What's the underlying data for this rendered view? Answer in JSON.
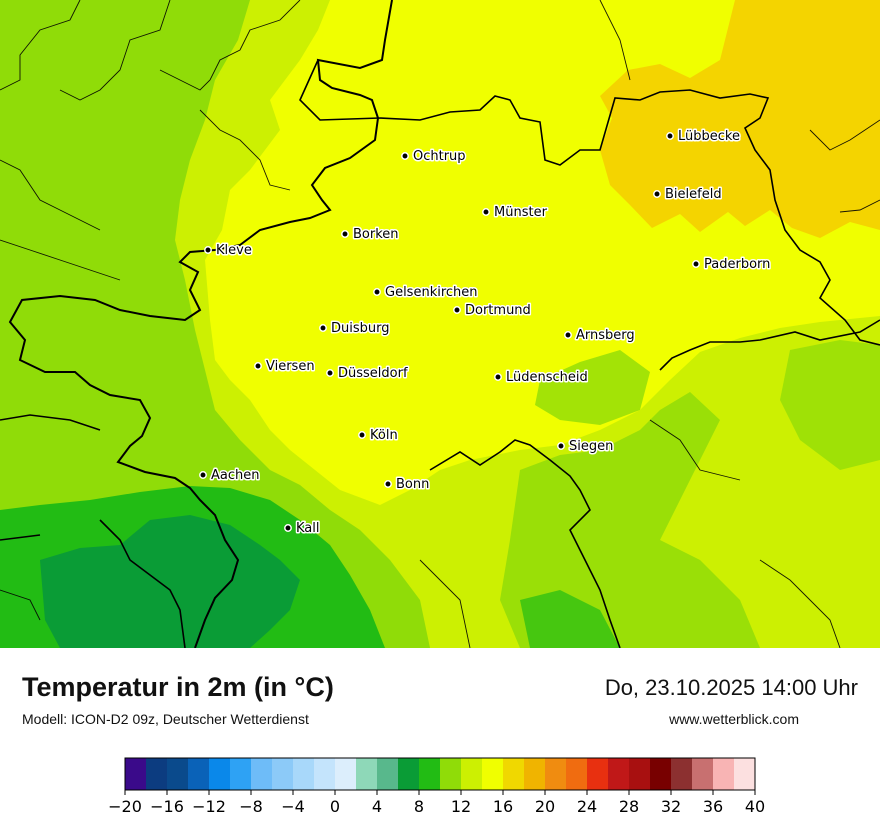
{
  "title": "Temperatur in 2m (in °C)",
  "model_line": "Modell: ICON-D2 09z, Deutscher Wetterdienst",
  "datetime": "Do, 23.10.2025 14:00 Uhr",
  "website": "www.wetterblick.com",
  "cities": [
    {
      "name": "Lübbecke"
    },
    {
      "name": "Ochtrup"
    },
    {
      "name": "Bielefeld"
    },
    {
      "name": "Münster"
    },
    {
      "name": "Borken"
    },
    {
      "name": "Kleve"
    },
    {
      "name": "Paderborn"
    },
    {
      "name": "Gelsenkirchen"
    },
    {
      "name": "Dortmund"
    },
    {
      "name": "Duisburg"
    },
    {
      "name": "Arnsberg"
    },
    {
      "name": "Viersen"
    },
    {
      "name": "Düsseldorf"
    },
    {
      "name": "Lüdenscheid"
    },
    {
      "name": "Köln"
    },
    {
      "name": "Siegen"
    },
    {
      "name": "Aachen"
    },
    {
      "name": "Bonn"
    },
    {
      "name": "Kall"
    }
  ],
  "legend": {
    "ticks": [
      "−20",
      "−16",
      "−12",
      "−8",
      "−4",
      "0",
      "4",
      "8",
      "12",
      "16",
      "20",
      "24",
      "28",
      "32",
      "36",
      "40"
    ],
    "colors": [
      "#3a0a8a",
      "#0c3c80",
      "#0a4a8c",
      "#0a62b8",
      "#0a88ea",
      "#2ea2f4",
      "#6ebcf8",
      "#8ccaf8",
      "#a8d8fa",
      "#c4e4fc",
      "#dceefc",
      "#8ed8b8",
      "#58b88c",
      "#0a9c36",
      "#22bc14",
      "#90dc08",
      "#ccf002",
      "#f0ff00",
      "#f0d800",
      "#f0b400",
      "#f08c10",
      "#f06c10",
      "#e83010",
      "#c01818",
      "#a81010",
      "#780000",
      "#8c3030",
      "#c87070",
      "#f8b4b4",
      "#fce0e0"
    ]
  },
  "map_colors": {
    "warm_orange": "#f4d400",
    "yellow": "#f0ff00",
    "yellow_green": "#ccf002",
    "light_green": "#90dc08",
    "green": "#22bc14",
    "dark_green": "#0a9c36"
  }
}
